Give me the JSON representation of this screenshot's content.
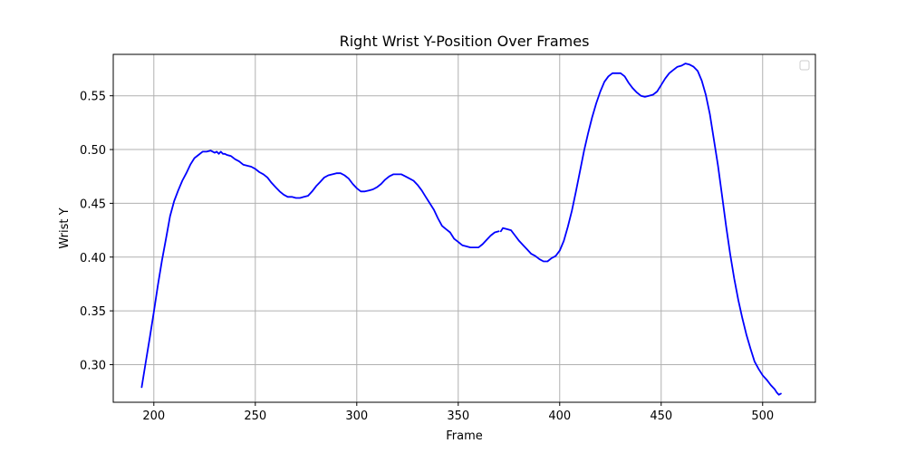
{
  "chart_data": {
    "type": "line",
    "title": "Right Wrist Y-Position Over Frames",
    "xlabel": "Frame",
    "ylabel": "Wrist Y",
    "xlim": [
      180,
      526
    ],
    "ylim": [
      0.265,
      0.5885
    ],
    "xticks": [
      200,
      250,
      300,
      350,
      400,
      450,
      500
    ],
    "yticks": [
      0.3,
      0.35,
      0.4,
      0.45,
      0.5,
      0.55
    ],
    "ytick_labels": [
      "0.30",
      "0.35",
      "0.40",
      "0.45",
      "0.50",
      "0.55"
    ],
    "xtick_labels": [
      "200",
      "250",
      "300",
      "350",
      "400",
      "450",
      "500"
    ],
    "grid": true,
    "legend": "top-right (empty)",
    "colors": {
      "line": "#0000ff",
      "grid": "#b0b0b0"
    },
    "series": [
      {
        "segments": [
          {
            "x": [
              194,
              196,
              198,
              200,
              202,
              204,
              206,
              208,
              210,
              212,
              214,
              216,
              218,
              220,
              222,
              224,
              226,
              228,
              229,
              230,
              231,
              232,
              233,
              234,
              235,
              236,
              238,
              240,
              242,
              244,
              246,
              248,
              250,
              252,
              254,
              256,
              258,
              260,
              262,
              264,
              266,
              268,
              270,
              272,
              274,
              276,
              278,
              280,
              282,
              284,
              286,
              288,
              290,
              292,
              294,
              296,
              298,
              300,
              302,
              304,
              306,
              308,
              310,
              312,
              314,
              316,
              318,
              320,
              322,
              324,
              326,
              328,
              330,
              332,
              334,
              336,
              338,
              340,
              342,
              344,
              346,
              348,
              350,
              352,
              354,
              356,
              358,
              360,
              362,
              364,
              366,
              368,
              370
            ],
            "y": [
              0.279,
              0.302,
              0.325,
              0.349,
              0.374,
              0.397,
              0.417,
              0.438,
              0.452,
              0.462,
              0.471,
              0.478,
              0.486,
              0.492,
              0.495,
              0.498,
              0.498,
              0.499,
              0.498,
              0.497,
              0.498,
              0.496,
              0.498,
              0.496,
              0.496,
              0.495,
              0.494,
              0.491,
              0.489,
              0.486,
              0.485,
              0.484,
              0.482,
              0.479,
              0.477,
              0.474,
              0.469,
              0.465,
              0.461,
              0.458,
              0.456,
              0.456,
              0.455,
              0.455,
              0.456,
              0.457,
              0.461,
              0.466,
              0.47,
              0.474,
              0.476,
              0.477,
              0.478,
              0.478,
              0.476,
              0.473,
              0.468,
              0.464,
              0.461,
              0.461,
              0.462,
              0.463,
              0.465,
              0.468,
              0.472,
              0.475,
              0.477,
              0.477,
              0.477,
              0.475,
              0.473,
              0.471,
              0.467,
              0.462,
              0.456,
              0.45,
              0.444,
              0.436,
              0.429,
              0.426,
              0.423,
              0.417,
              0.414,
              0.411,
              0.41,
              0.409,
              0.409,
              0.409,
              0.412,
              0.416,
              0.42,
              0.423,
              0.424
            ]
          },
          {
            "x": [
              371,
              372,
              374,
              376,
              378,
              380,
              382,
              384,
              386,
              388,
              390,
              392,
              394,
              396,
              398,
              400,
              402,
              404,
              406,
              408,
              410,
              412,
              414,
              416,
              418,
              420,
              422,
              424,
              426,
              428,
              430,
              432,
              434,
              436,
              438,
              440,
              442,
              444,
              446,
              448,
              450,
              452,
              454,
              456,
              458,
              460,
              462,
              464,
              466,
              468,
              470,
              472,
              474,
              476,
              478,
              480,
              482,
              484,
              486,
              488,
              490,
              492,
              494,
              496,
              498,
              500,
              502,
              504,
              506,
              507,
              508,
              509
            ],
            "y": [
              0.424,
              0.427,
              0.426,
              0.425,
              0.42,
              0.415,
              0.411,
              0.407,
              0.403,
              0.401,
              0.398,
              0.396,
              0.396,
              0.399,
              0.401,
              0.406,
              0.415,
              0.428,
              0.443,
              0.461,
              0.48,
              0.499,
              0.515,
              0.53,
              0.543,
              0.554,
              0.563,
              0.568,
              0.571,
              0.571,
              0.571,
              0.568,
              0.562,
              0.557,
              0.553,
              0.55,
              0.549,
              0.55,
              0.551,
              0.554,
              0.56,
              0.566,
              0.571,
              0.574,
              0.577,
              0.578,
              0.58,
              0.579,
              0.577,
              0.573,
              0.564,
              0.551,
              0.533,
              0.509,
              0.485,
              0.457,
              0.429,
              0.403,
              0.38,
              0.36,
              0.343,
              0.328,
              0.315,
              0.303,
              0.296,
              0.29,
              0.286,
              0.281,
              0.277,
              0.274,
              0.272,
              0.273
            ]
          }
        ]
      }
    ]
  }
}
